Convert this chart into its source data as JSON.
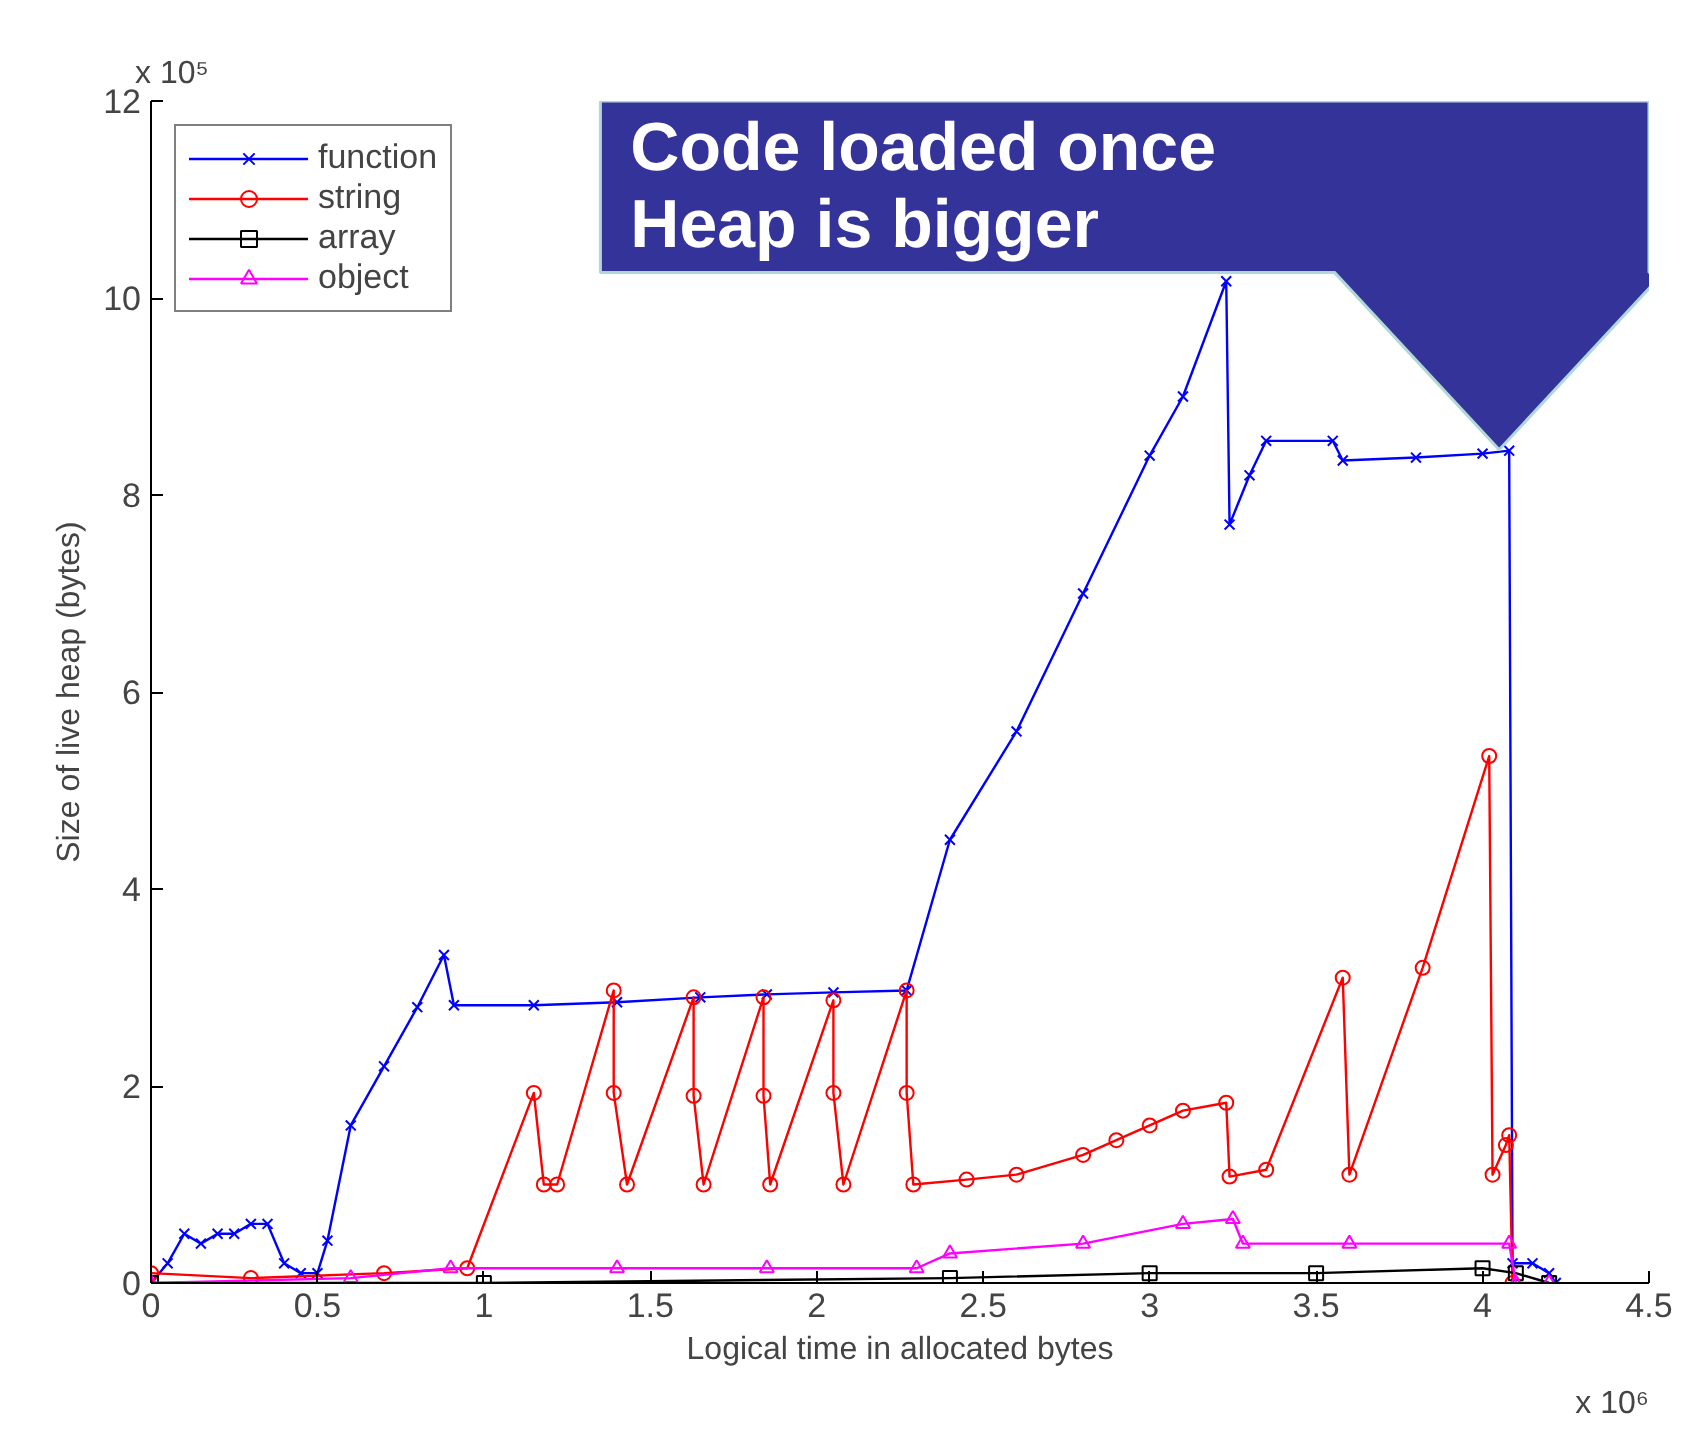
{
  "chart_data": {
    "type": "line",
    "xlabel": "Logical time in allocated bytes",
    "ylabel": "Size of live heap (bytes)",
    "xlim": [
      0,
      4.5
    ],
    "xticks": [
      0,
      0.5,
      1,
      1.5,
      2,
      2.5,
      3,
      3.5,
      4,
      4.5
    ],
    "ylim": [
      0,
      12
    ],
    "yticks": [
      0,
      2,
      4,
      6,
      8,
      10,
      12
    ],
    "grid": false,
    "legend": "top left",
    "line_style": "solid",
    "annotations": [
      "x 10⁵",
      "x 10⁶",
      "Code loaded once",
      "Heap is bigger"
    ],
    "series": [
      {
        "name": "function",
        "color": "#0000ff",
        "marker": "cross",
        "x": [
          0,
          0.05,
          0.1,
          0.15,
          0.2,
          0.25,
          0.3,
          0.35,
          0.4,
          0.45,
          0.5,
          0.53,
          0.6,
          0.7,
          0.8,
          0.88,
          0.91,
          1.15,
          1.4,
          1.65,
          1.85,
          2.05,
          2.27,
          2.4,
          2.6,
          2.8,
          3.0,
          3.1,
          3.23,
          3.24,
          3.3,
          3.35,
          3.55,
          3.58,
          3.8,
          4.0,
          4.08,
          4.09,
          4.15,
          4.2,
          4.22
        ],
        "values": [
          0,
          0.2,
          0.5,
          0.4,
          0.5,
          0.5,
          0.6,
          0.6,
          0.2,
          0.1,
          0.1,
          0.43,
          1.6,
          2.2,
          2.8,
          3.33,
          2.82,
          2.82,
          2.85,
          2.9,
          2.93,
          2.95,
          2.97,
          4.5,
          5.6,
          7.0,
          8.4,
          9.0,
          10.17,
          7.7,
          8.2,
          8.55,
          8.55,
          8.35,
          8.38,
          8.42,
          8.45,
          0.2,
          0.2,
          0.1,
          0
        ]
      },
      {
        "name": "string",
        "color": "#ff0000",
        "marker": "circle",
        "x": [
          0,
          0.3,
          0.7,
          0.95,
          1.15,
          1.18,
          1.22,
          1.39,
          1.39,
          1.43,
          1.63,
          1.63,
          1.66,
          1.84,
          1.84,
          1.86,
          2.05,
          2.05,
          2.08,
          2.27,
          2.27,
          2.29,
          2.45,
          2.6,
          2.8,
          2.9,
          3.0,
          3.1,
          3.23,
          3.24,
          3.35,
          3.58,
          3.6,
          3.82,
          4.02,
          4.03,
          4.07,
          4.08,
          4.09
        ],
        "values": [
          0.1,
          0.05,
          0.1,
          0.15,
          1.93,
          1.0,
          1.0,
          2.97,
          1.93,
          1.0,
          2.9,
          1.9,
          1.0,
          2.9,
          1.9,
          1.0,
          2.87,
          1.93,
          1.0,
          2.97,
          1.93,
          1.0,
          1.05,
          1.1,
          1.3,
          1.45,
          1.6,
          1.75,
          1.83,
          1.08,
          1.15,
          3.1,
          1.1,
          3.2,
          5.35,
          1.1,
          1.4,
          1.5,
          0
        ]
      },
      {
        "name": "array",
        "color": "#000000",
        "marker": "square",
        "x": [
          0,
          1.0,
          2.4,
          3.0,
          3.5,
          4.0,
          4.1,
          4.2
        ],
        "values": [
          0,
          0,
          0.05,
          0.1,
          0.1,
          0.15,
          0.1,
          0
        ]
      },
      {
        "name": "object",
        "color": "#ff00ff",
        "marker": "triangle",
        "x": [
          0,
          0.6,
          0.9,
          1.4,
          1.85,
          2.3,
          2.4,
          2.8,
          3.1,
          3.25,
          3.28,
          3.6,
          4.08,
          4.1,
          4.2
        ],
        "values": [
          0,
          0.05,
          0.15,
          0.15,
          0.15,
          0.15,
          0.3,
          0.4,
          0.6,
          0.65,
          0.4,
          0.4,
          0.4,
          0,
          0
        ]
      }
    ]
  }
}
